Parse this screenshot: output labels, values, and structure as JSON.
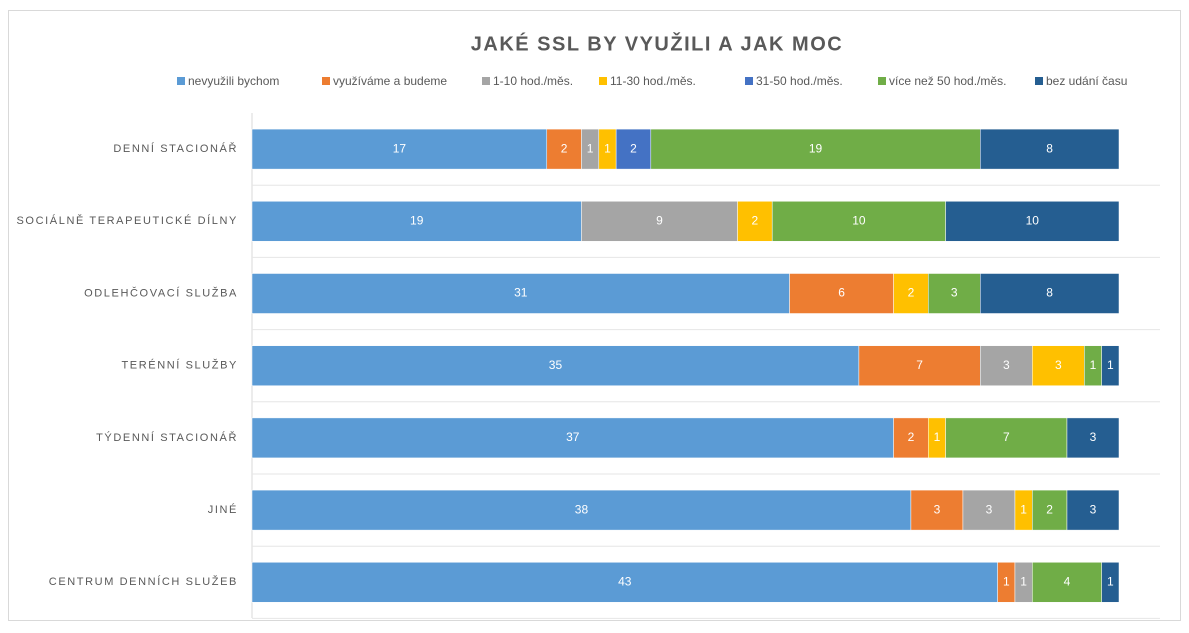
{
  "chart_data": {
    "type": "stacked-barh",
    "title": "JAKÉ SSL BY VYUŽILI A JAK MOC",
    "categories": [
      "DENNÍ STACIONÁŘ",
      "SOCIÁLNĚ TERAPEUTICKÉ DÍLNY",
      "ODLEHČOVACÍ SLUŽBA",
      "TERÉNNÍ SLUŽBY",
      "TÝDENNÍ STACIONÁŘ",
      "JINÉ",
      "CENTRUM DENNÍCH SLUŽEB"
    ],
    "xlim": [
      0,
      50
    ],
    "series": [
      {
        "name": "nevyužili bychom",
        "color": "#5b9bd5",
        "values": [
          17,
          19,
          31,
          35,
          37,
          38,
          43
        ]
      },
      {
        "name": "využíváme a budeme",
        "color": "#ed7d31",
        "values": [
          2,
          null,
          6,
          7,
          2,
          3,
          1
        ]
      },
      {
        "name": "1-10 hod./měs.",
        "color": "#a5a5a5",
        "values": [
          1,
          9,
          null,
          3,
          null,
          3,
          1
        ]
      },
      {
        "name": "11-30 hod./měs.",
        "color": "#ffc000",
        "values": [
          1,
          2,
          2,
          3,
          1,
          1,
          null
        ]
      },
      {
        "name": "31-50 hod./měs.",
        "color": "#4472c4",
        "values": [
          2,
          null,
          null,
          null,
          null,
          null,
          null
        ]
      },
      {
        "name": "více než 50 hod./měs.",
        "color": "#70ad47",
        "values": [
          19,
          10,
          3,
          1,
          7,
          2,
          4
        ]
      },
      {
        "name": "bez udání času",
        "color": "#255e91",
        "values": [
          8,
          10,
          8,
          1,
          3,
          3,
          1
        ]
      }
    ],
    "legend": "top"
  }
}
